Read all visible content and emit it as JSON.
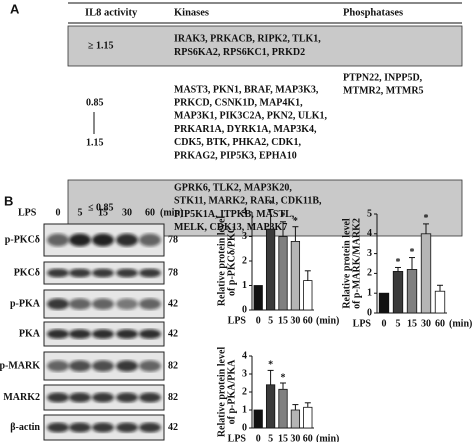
{
  "panel_a": {
    "label": "A",
    "header": [
      "IL8 activity",
      "Kinases",
      "Phosphatases"
    ],
    "rows": [
      {
        "activity": [
          "≥ 1.15"
        ],
        "kinases": [
          "IRAK3, PRKACB, RIPK2, TLK1,",
          "RPS6KA2, RPS6KC1, PRKD2"
        ],
        "phosphatases": []
      },
      {
        "activity": [
          "0.85",
          "1.15"
        ],
        "kinases": [
          "MAST3, PKN1, BRAF, MAP3K3,",
          "PRKCD, CSNK1D, MAP4K1,",
          "MAP3K1, PIK3C2A, PKN2, ULK1,",
          "PRKAR1A, DYRK1A, MAP3K4,",
          "CDK5, BTK, PHKA2, CDK1,",
          "PRKAG2, PIP5K3, EPHA10"
        ],
        "phosphatases": [
          "PTPN22, INPP5D,",
          "MTMR2, MTMR5"
        ]
      },
      {
        "activity": [
          "≤ 0.85"
        ],
        "kinases": [
          "GPRK6, TLK2, MAP3K20,",
          "STK11, MARK2, RAF1, CDK11B,",
          "PIP5K1A, ITPKB, MASTL,",
          "MELK, CDK13, MAP3K7"
        ],
        "phosphatases": []
      }
    ]
  },
  "panel_b": {
    "label": "B",
    "treatment": "LPS",
    "lanes": [
      "0",
      "5",
      "15",
      "30",
      "60"
    ],
    "unit": "(min)",
    "blots": [
      {
        "name": "p-PKCδ",
        "kda": "78"
      },
      {
        "name": "PKCδ",
        "kda": "78"
      },
      {
        "name": "p-PKA",
        "kda": "42"
      },
      {
        "name": "PKA",
        "kda": "42"
      },
      {
        "name": "p-MARK",
        "kda": "82"
      },
      {
        "name": "MARK2",
        "kda": "82"
      },
      {
        "name": "β-actin",
        "kda": "42"
      }
    ]
  },
  "chart_data": [
    {
      "type": "bar",
      "ylabel": [
        "Relative protein level",
        "of p-PKCδ/PKC"
      ],
      "xlabel": "LPS",
      "xunit": "(min)",
      "categories": [
        "0",
        "5",
        "15",
        "30",
        "60"
      ],
      "values": [
        1.0,
        3.3,
        3.0,
        2.8,
        1.2
      ],
      "errors": [
        0,
        0.8,
        0.6,
        0.6,
        0.4
      ],
      "significance": [
        null,
        "*",
        "*",
        "*",
        null
      ],
      "colors": [
        "#111111",
        "#3a3a3a",
        "#808080",
        "#b5b5b5",
        "#ffffff"
      ],
      "ylim": [
        0,
        4
      ],
      "yticks": [
        0,
        1,
        2,
        3,
        4
      ]
    },
    {
      "type": "bar",
      "ylabel": [
        "Relative protein level",
        "of p-MARK/MARK2"
      ],
      "xlabel": "LPS",
      "xunit": "(min)",
      "categories": [
        "0",
        "5",
        "15",
        "30",
        "60"
      ],
      "values": [
        1.0,
        2.1,
        2.2,
        4.0,
        1.1
      ],
      "errors": [
        0,
        0.2,
        0.6,
        0.5,
        0.3
      ],
      "significance": [
        null,
        "*",
        "*",
        "*",
        null
      ],
      "colors": [
        "#111111",
        "#3a3a3a",
        "#808080",
        "#b5b5b5",
        "#ffffff"
      ],
      "ylim": [
        0,
        5
      ],
      "yticks": [
        0,
        1,
        2,
        3,
        4,
        5
      ]
    },
    {
      "type": "bar",
      "ylabel": [
        "Relative protein level",
        "of p-PKA/PKA"
      ],
      "xlabel": "LPS",
      "xunit": "(min)",
      "categories": [
        "0",
        "5",
        "15",
        "30",
        "60"
      ],
      "values": [
        1.0,
        2.4,
        2.15,
        1.0,
        1.15
      ],
      "errors": [
        0,
        0.8,
        0.35,
        0.3,
        0.25
      ],
      "significance": [
        null,
        "*",
        "*",
        null,
        null
      ],
      "colors": [
        "#111111",
        "#3a3a3a",
        "#808080",
        "#b5b5b5",
        "#ffffff"
      ],
      "ylim": [
        0,
        4
      ],
      "yticks": [
        0,
        1,
        2,
        3,
        4
      ]
    }
  ]
}
